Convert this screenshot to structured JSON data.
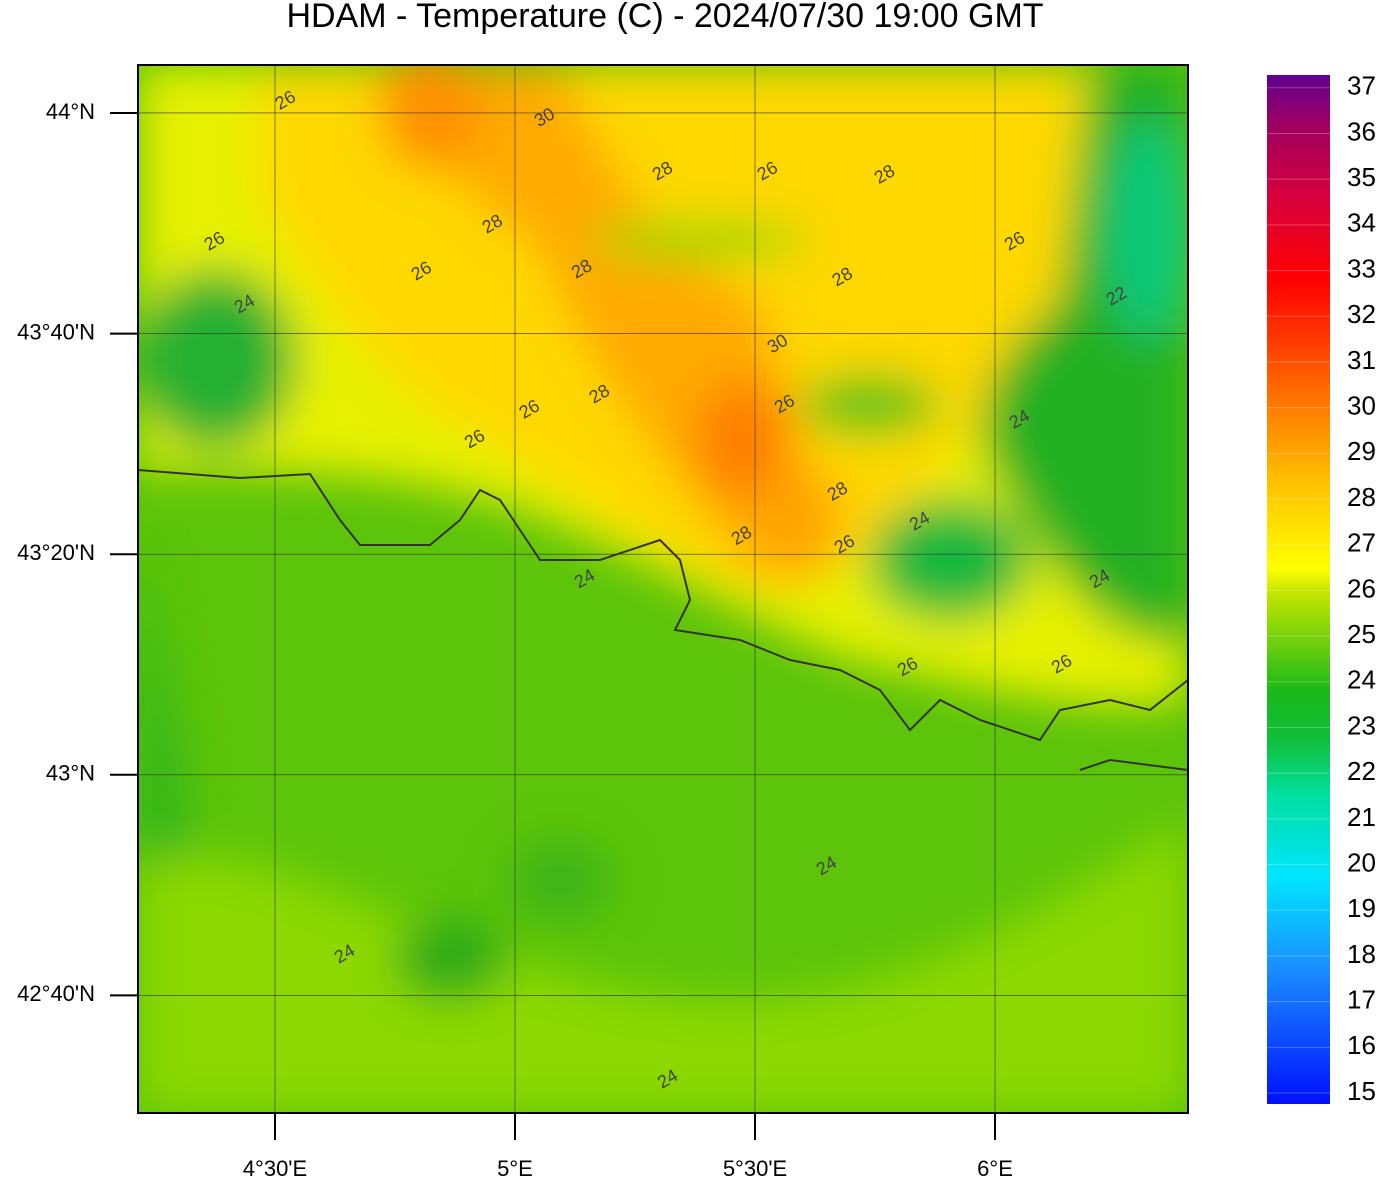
{
  "map": {
    "title": "HDAM - Temperature (C)  -  2024/07/30  19:00 GMT",
    "lonlim": [
      4.2146,
      6.402
    ],
    "latlim": [
      42.489,
      44.0725
    ],
    "lat_ticks": [
      {
        "value": 44,
        "label": "44°N"
      },
      {
        "value": 43.6667,
        "label": "43°40'N"
      },
      {
        "value": 43.3333,
        "label": "43°20'N"
      },
      {
        "value": 43,
        "label": "43°N"
      },
      {
        "value": 42.6667,
        "label": "42°40'N"
      }
    ],
    "lon_ticks": [
      {
        "value": 4.5,
        "label": "4°30'E"
      },
      {
        "value": 5,
        "label": "5°E"
      },
      {
        "value": 5.5,
        "label": "5°30'E"
      },
      {
        "value": 6,
        "label": "6°E"
      }
    ],
    "colorbar": {
      "clim": [
        14.76,
        37.28
      ],
      "ticks": [
        15,
        16,
        17,
        18,
        19,
        20,
        21,
        22,
        23,
        24,
        25,
        26,
        27,
        28,
        29,
        30,
        31,
        32,
        33,
        34,
        35,
        36,
        37
      ]
    },
    "contour_labels": [
      {
        "value": 26,
        "lon": 4.5229,
        "lat": 44.018
      },
      {
        "value": 30,
        "lon": 5.0625,
        "lat": 43.992
      },
      {
        "value": 28,
        "lon": 5.3083,
        "lat": 43.911
      },
      {
        "value": 26,
        "lon": 5.527,
        "lat": 43.911
      },
      {
        "value": 28,
        "lon": 5.771,
        "lat": 43.906
      },
      {
        "value": 28,
        "lon": 4.954,
        "lat": 43.831
      },
      {
        "value": 26,
        "lon": 4.375,
        "lat": 43.805
      },
      {
        "value": 26,
        "lon": 4.806,
        "lat": 43.76
      },
      {
        "value": 28,
        "lon": 5.14,
        "lat": 43.763
      },
      {
        "value": 28,
        "lon": 5.683,
        "lat": 43.751
      },
      {
        "value": 26,
        "lon": 6.042,
        "lat": 43.805
      },
      {
        "value": 24,
        "lon": 4.4375,
        "lat": 43.71
      },
      {
        "value": 22,
        "lon": 6.254,
        "lat": 43.722
      },
      {
        "value": 30,
        "lon": 5.548,
        "lat": 43.65
      },
      {
        "value": 28,
        "lon": 5.177,
        "lat": 43.574
      },
      {
        "value": 26,
        "lon": 5.5625,
        "lat": 43.559
      },
      {
        "value": 26,
        "lon": 5.031,
        "lat": 43.551
      },
      {
        "value": 24,
        "lon": 6.052,
        "lat": 43.536
      },
      {
        "value": 26,
        "lon": 4.917,
        "lat": 43.506
      },
      {
        "value": 28,
        "lon": 5.673,
        "lat": 43.427
      },
      {
        "value": 24,
        "lon": 5.844,
        "lat": 43.382
      },
      {
        "value": 28,
        "lon": 5.473,
        "lat": 43.36
      },
      {
        "value": 26,
        "lon": 5.6875,
        "lat": 43.347
      },
      {
        "value": 24,
        "lon": 5.146,
        "lat": 43.295
      },
      {
        "value": 24,
        "lon": 6.219,
        "lat": 43.295
      },
      {
        "value": 26,
        "lon": 5.819,
        "lat": 43.162
      },
      {
        "value": 26,
        "lon": 6.14,
        "lat": 43.166
      },
      {
        "value": 24,
        "lon": 5.65,
        "lat": 42.861
      },
      {
        "value": 24,
        "lon": 4.646,
        "lat": 42.728
      },
      {
        "value": 24,
        "lon": 5.319,
        "lat": 42.539
      }
    ]
  }
}
